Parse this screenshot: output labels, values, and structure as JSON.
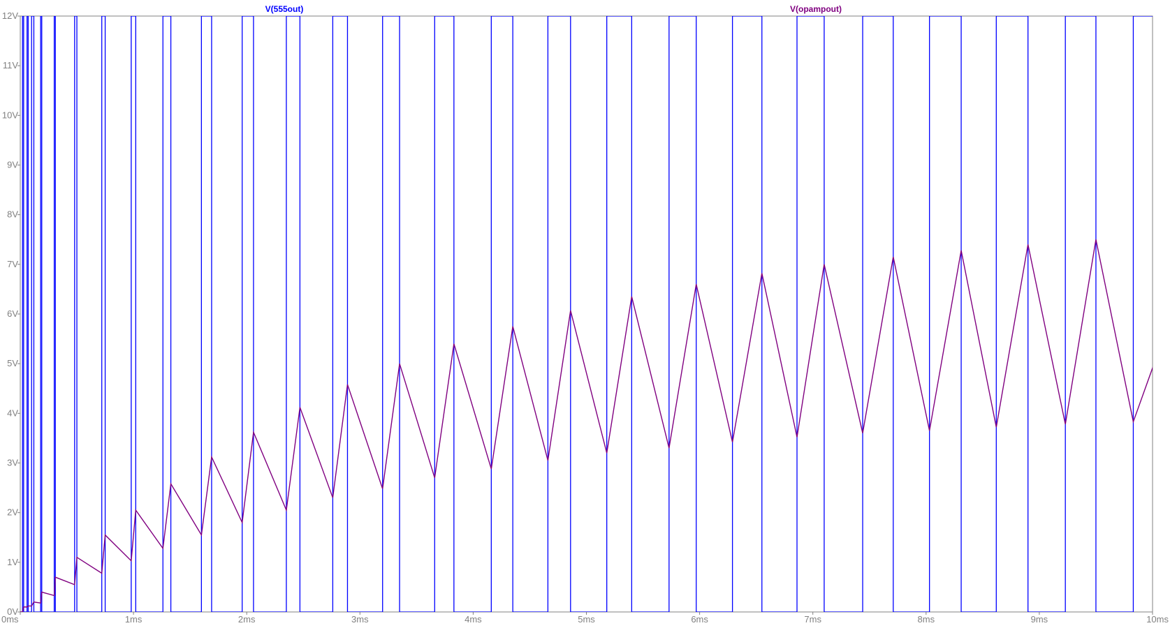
{
  "chart_data": {
    "type": "line",
    "xlabel": "",
    "ylabel": "",
    "xlim": [
      0,
      10
    ],
    "ylim": [
      0,
      12
    ],
    "grid": false,
    "legend_placement": "top",
    "x_ticks": [
      {
        "value": 0,
        "label": "0ms"
      },
      {
        "value": 1,
        "label": "1ms"
      },
      {
        "value": 2,
        "label": "2ms"
      },
      {
        "value": 3,
        "label": "3ms"
      },
      {
        "value": 4,
        "label": "4ms"
      },
      {
        "value": 5,
        "label": "5ms"
      },
      {
        "value": 6,
        "label": "6ms"
      },
      {
        "value": 7,
        "label": "7ms"
      },
      {
        "value": 8,
        "label": "8ms"
      },
      {
        "value": 9,
        "label": "9ms"
      },
      {
        "value": 10,
        "label": "10ms"
      }
    ],
    "y_ticks": [
      {
        "value": 0,
        "label": "0V"
      },
      {
        "value": 1,
        "label": "1V"
      },
      {
        "value": 2,
        "label": "2V"
      },
      {
        "value": 3,
        "label": "3V"
      },
      {
        "value": 4,
        "label": "4V"
      },
      {
        "value": 5,
        "label": "5V"
      },
      {
        "value": 6,
        "label": "6V"
      },
      {
        "value": 7,
        "label": "7V"
      },
      {
        "value": 8,
        "label": "8V"
      },
      {
        "value": 9,
        "label": "9V"
      },
      {
        "value": 10,
        "label": "10V"
      },
      {
        "value": 11,
        "label": "11V"
      },
      {
        "value": 12,
        "label": "12V"
      }
    ],
    "series": [
      {
        "name": "V(555out)",
        "color": "#0000ff",
        "high_value": 12,
        "low_value": 0,
        "high_intervals": [
          [
            0.02,
            0.03
          ],
          [
            0.06,
            0.07
          ],
          [
            0.1,
            0.12
          ],
          [
            0.18,
            0.19
          ],
          [
            0.3,
            0.31
          ],
          [
            0.48,
            0.5
          ],
          [
            0.72,
            0.75
          ],
          [
            0.98,
            1.02
          ],
          [
            1.26,
            1.33
          ],
          [
            1.6,
            1.69
          ],
          [
            1.96,
            2.06
          ],
          [
            2.35,
            2.47
          ],
          [
            2.76,
            2.89
          ],
          [
            3.2,
            3.35
          ],
          [
            3.66,
            3.83
          ],
          [
            4.16,
            4.35
          ],
          [
            4.66,
            4.86
          ],
          [
            5.18,
            5.4
          ],
          [
            5.73,
            5.97
          ],
          [
            6.29,
            6.55
          ],
          [
            6.86,
            7.1
          ],
          [
            7.44,
            7.71
          ],
          [
            8.03,
            8.31
          ],
          [
            8.62,
            8.9
          ],
          [
            9.23,
            9.5
          ],
          [
            9.83,
            10.2
          ]
        ]
      },
      {
        "name": "V(opampout)",
        "color": "#800080",
        "points": [
          [
            0,
            0
          ],
          [
            0.01,
            0
          ],
          [
            0.02,
            0
          ],
          [
            0.03,
            0.1
          ],
          [
            0.06,
            0.1
          ],
          [
            0.07,
            0.12
          ],
          [
            0.1,
            0.12
          ],
          [
            0.12,
            0.2
          ],
          [
            0.18,
            0.18
          ],
          [
            0.19,
            0.4
          ],
          [
            0.3,
            0.33
          ],
          [
            0.31,
            0.7
          ],
          [
            0.48,
            0.55
          ],
          [
            0.5,
            1.1
          ],
          [
            0.72,
            0.78
          ],
          [
            0.75,
            1.55
          ],
          [
            0.98,
            1.03
          ],
          [
            1.02,
            2.05
          ],
          [
            1.26,
            1.28
          ],
          [
            1.33,
            2.58
          ],
          [
            1.6,
            1.55
          ],
          [
            1.69,
            3.12
          ],
          [
            1.96,
            1.8
          ],
          [
            2.06,
            3.62
          ],
          [
            2.35,
            2.05
          ],
          [
            2.47,
            4.12
          ],
          [
            2.76,
            2.3
          ],
          [
            2.89,
            4.58
          ],
          [
            3.2,
            2.48
          ],
          [
            3.35,
            5.0
          ],
          [
            3.66,
            2.7
          ],
          [
            3.83,
            5.4
          ],
          [
            4.16,
            2.88
          ],
          [
            4.35,
            5.75
          ],
          [
            4.66,
            3.05
          ],
          [
            4.86,
            6.07
          ],
          [
            5.18,
            3.2
          ],
          [
            5.4,
            6.35
          ],
          [
            5.73,
            3.3
          ],
          [
            5.97,
            6.6
          ],
          [
            6.29,
            3.42
          ],
          [
            6.55,
            6.82
          ],
          [
            6.86,
            3.52
          ],
          [
            7.1,
            7.0
          ],
          [
            7.44,
            3.6
          ],
          [
            7.71,
            7.15
          ],
          [
            8.03,
            3.65
          ],
          [
            8.31,
            7.28
          ],
          [
            8.62,
            3.72
          ],
          [
            8.9,
            7.4
          ],
          [
            9.23,
            3.78
          ],
          [
            9.5,
            7.5
          ],
          [
            9.83,
            3.83
          ],
          [
            10.1,
            5.55
          ]
        ]
      }
    ]
  }
}
